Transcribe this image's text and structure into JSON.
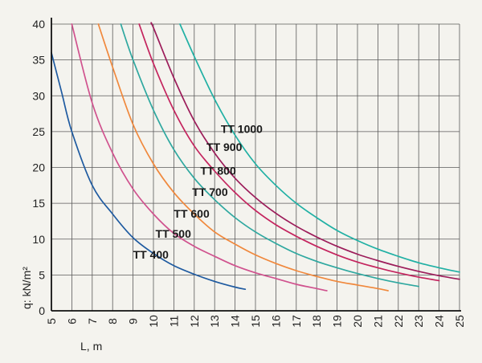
{
  "chart_data": {
    "type": "line",
    "title": "",
    "xlabel": "L, m",
    "ylabel": "q: kN/m²",
    "xlim": [
      5,
      25
    ],
    "ylim": [
      0,
      40
    ],
    "x_ticks": [
      5,
      6,
      7,
      8,
      9,
      10,
      11,
      12,
      13,
      14,
      15,
      16,
      17,
      18,
      19,
      20,
      21,
      22,
      23,
      24,
      25
    ],
    "y_ticks": [
      0,
      5,
      10,
      15,
      20,
      25,
      30,
      35,
      40
    ],
    "grid": true,
    "legend": "inline labels",
    "series": [
      {
        "name": "TT 400",
        "color": "#1e5aa0",
        "x": [
          5,
          5.5,
          6,
          7,
          8,
          9,
          10,
          11,
          12,
          13,
          14,
          14.5
        ],
        "y": [
          36.0,
          30.5,
          25.0,
          17.5,
          13.5,
          10.2,
          8.0,
          6.3,
          5.1,
          4.1,
          3.3,
          3.0
        ]
      },
      {
        "name": "TT 500",
        "color": "#d0528e",
        "x": [
          6,
          7,
          8,
          9,
          10,
          11,
          12,
          13,
          14,
          15,
          16,
          17,
          18,
          18.5
        ],
        "y": [
          40.0,
          29.0,
          22.0,
          17.0,
          13.5,
          10.8,
          9.0,
          7.6,
          6.3,
          5.3,
          4.5,
          3.7,
          3.1,
          2.8
        ]
      },
      {
        "name": "TT 600",
        "color": "#f0883c",
        "x": [
          7.3,
          8,
          9,
          10,
          11,
          12,
          13,
          14,
          15,
          16,
          17,
          18,
          19,
          20,
          21,
          21.5
        ],
        "y": [
          40.0,
          34.0,
          26.0,
          20.5,
          16.5,
          13.5,
          11.0,
          9.3,
          7.8,
          6.6,
          5.6,
          4.8,
          4.1,
          3.6,
          3.1,
          2.8
        ]
      },
      {
        "name": "TT 700",
        "color": "#2fa8a0",
        "x": [
          8.4,
          9,
          10,
          11,
          12,
          13,
          14,
          15,
          16,
          17,
          18,
          19,
          20,
          21,
          22,
          23
        ],
        "y": [
          40.0,
          35.0,
          28.0,
          22.5,
          18.5,
          15.5,
          13.0,
          11.0,
          9.4,
          8.0,
          6.9,
          6.0,
          5.2,
          4.5,
          3.9,
          3.4
        ]
      },
      {
        "name": "TT 800",
        "color": "#c4245e",
        "x": [
          9.3,
          10,
          11,
          12,
          13,
          14,
          15,
          16,
          17,
          18,
          19,
          20,
          21,
          22,
          23,
          24
        ],
        "y": [
          40.0,
          34.5,
          28.0,
          23.0,
          19.5,
          16.5,
          14.0,
          12.0,
          10.4,
          9.0,
          7.8,
          6.8,
          6.0,
          5.3,
          4.7,
          4.2
        ]
      },
      {
        "name": "TT 900",
        "color": "#9c1c5a",
        "x": [
          9.9,
          10,
          11,
          12,
          13,
          14,
          15,
          16,
          17,
          18,
          19,
          20,
          21,
          22,
          23,
          24,
          25
        ],
        "y": [
          40.0,
          39.5,
          32.5,
          26.5,
          22.0,
          18.5,
          15.8,
          13.6,
          11.8,
          10.3,
          9.0,
          7.9,
          7.0,
          6.2,
          5.5,
          4.9,
          4.4
        ]
      },
      {
        "name": "TT 1000",
        "color": "#20b0a4",
        "x": [
          11.3,
          12,
          13,
          14,
          15,
          16,
          17,
          18,
          19,
          20,
          21,
          22,
          23,
          24,
          25
        ],
        "y": [
          40.0,
          35.5,
          29.5,
          24.5,
          20.5,
          17.5,
          15.0,
          13.0,
          11.2,
          9.8,
          8.6,
          7.6,
          6.7,
          6.0,
          5.4
        ]
      }
    ]
  }
}
